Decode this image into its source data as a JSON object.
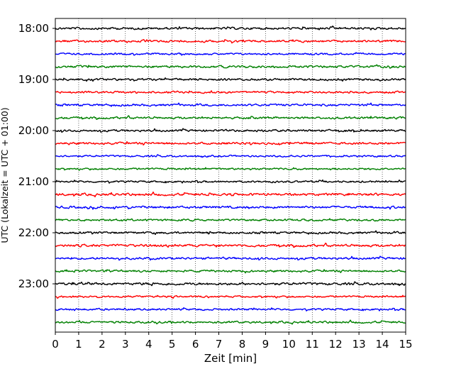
{
  "chart_data": {
    "type": "line",
    "title": "",
    "xlabel": "Zeit  [min]",
    "ylabel": "UTC (Lokalzeit = UTC + 01:00)",
    "xlim": [
      0,
      15
    ],
    "x_ticks": [
      "0",
      "1",
      "2",
      "3",
      "4",
      "5",
      "6",
      "7",
      "8",
      "9",
      "10",
      "11",
      "12",
      "13",
      "14",
      "15"
    ],
    "y_ticks": [
      "18:00",
      "19:00",
      "20:00",
      "21:00",
      "22:00",
      "23:00"
    ],
    "grid": "vertical dotted lines at each minute",
    "trace_interval_minutes": 15,
    "color_cycle": [
      "#000000",
      "#ff0000",
      "#0000ff",
      "#008000"
    ],
    "series": [
      {
        "start": "18:00",
        "color": "#000000"
      },
      {
        "start": "18:15",
        "color": "#ff0000"
      },
      {
        "start": "18:30",
        "color": "#0000ff"
      },
      {
        "start": "18:45",
        "color": "#008000"
      },
      {
        "start": "19:00",
        "color": "#000000"
      },
      {
        "start": "19:15",
        "color": "#ff0000"
      },
      {
        "start": "19:30",
        "color": "#0000ff"
      },
      {
        "start": "19:45",
        "color": "#008000"
      },
      {
        "start": "20:00",
        "color": "#000000"
      },
      {
        "start": "20:15",
        "color": "#ff0000"
      },
      {
        "start": "20:30",
        "color": "#0000ff"
      },
      {
        "start": "20:45",
        "color": "#008000"
      },
      {
        "start": "21:00",
        "color": "#000000"
      },
      {
        "start": "21:15",
        "color": "#ff0000"
      },
      {
        "start": "21:30",
        "color": "#0000ff"
      },
      {
        "start": "21:45",
        "color": "#008000"
      },
      {
        "start": "22:00",
        "color": "#000000"
      },
      {
        "start": "22:15",
        "color": "#ff0000"
      },
      {
        "start": "22:30",
        "color": "#0000ff"
      },
      {
        "start": "22:45",
        "color": "#008000"
      },
      {
        "start": "23:00",
        "color": "#000000"
      },
      {
        "start": "23:15",
        "color": "#ff0000"
      },
      {
        "start": "23:30",
        "color": "#0000ff"
      },
      {
        "start": "23:45",
        "color": "#008000"
      }
    ]
  }
}
